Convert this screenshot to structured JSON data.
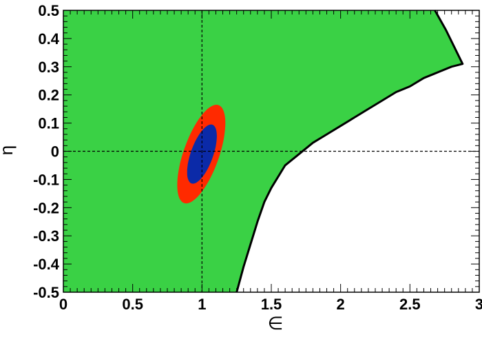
{
  "chart_data": {
    "type": "area",
    "title": "",
    "xlabel": "∈",
    "ylabel": "η",
    "xlim": [
      0,
      3
    ],
    "ylim": [
      -0.5,
      0.5
    ],
    "grid": false,
    "x_ticks": [
      0,
      0.5,
      1,
      1.5,
      2,
      2.5,
      3
    ],
    "x_tick_labels": [
      "0",
      "0.5",
      "1",
      "1.5",
      "2",
      "2.5",
      "3"
    ],
    "y_ticks": [
      0.5,
      0.4,
      0.3,
      0.2,
      0.1,
      0,
      -0.1,
      -0.2,
      -0.3,
      -0.4,
      -0.5
    ],
    "y_tick_labels": [
      "0.5",
      "0.4",
      "0.3",
      "0.2",
      "0.1",
      "0",
      "-0.1",
      "-0.2",
      "-0.3",
      "-0.4",
      "-0.5"
    ],
    "reference_lines": {
      "x": 1,
      "y": 0
    },
    "regions": [
      {
        "role": "allowed-region",
        "color": "#3ad145",
        "boundary": [
          [
            1.25,
            -0.5
          ],
          [
            1.3,
            -0.41
          ],
          [
            1.35,
            -0.33
          ],
          [
            1.4,
            -0.25
          ],
          [
            1.45,
            -0.18
          ],
          [
            1.5,
            -0.13
          ],
          [
            1.6,
            -0.05
          ],
          [
            1.7,
            -0.01
          ],
          [
            1.8,
            0.03
          ],
          [
            1.9,
            0.06
          ],
          [
            2.0,
            0.09
          ],
          [
            2.1,
            0.12
          ],
          [
            2.2,
            0.15
          ],
          [
            2.3,
            0.18
          ],
          [
            2.4,
            0.21
          ],
          [
            2.5,
            0.23
          ],
          [
            2.6,
            0.26
          ],
          [
            2.7,
            0.28
          ],
          [
            2.8,
            0.3
          ],
          [
            2.88,
            0.31
          ],
          [
            2.76,
            0.43
          ],
          [
            2.68,
            0.5
          ]
        ]
      },
      {
        "role": "outer-contour",
        "color": "#ff2a00",
        "center": [
          0.995,
          -0.01
        ],
        "semi_axes": [
          0.135,
          0.175
        ],
        "tilt": -0.03
      },
      {
        "role": "inner-contour",
        "color": "#0b2aa8",
        "center": [
          1.0,
          -0.01
        ],
        "semi_axes": [
          0.085,
          0.105
        ],
        "tilt": -0.03
      }
    ]
  }
}
